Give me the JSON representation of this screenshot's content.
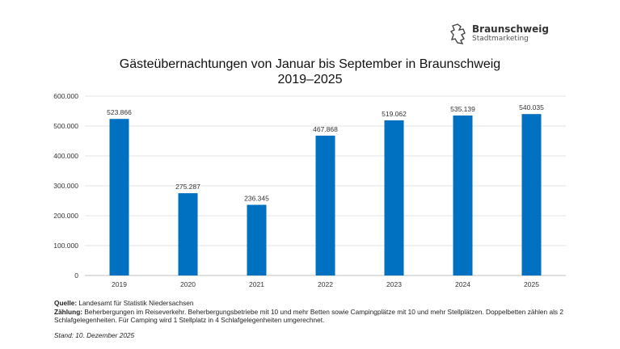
{
  "logo": {
    "name": "Braunschweig",
    "sub": "Stadtmarketing"
  },
  "chart_data": {
    "type": "bar",
    "title": "Gästeübernachtungen von Januar bis September in Braunschweig",
    "subtitle": "2019–2025",
    "categories": [
      "2019",
      "2020",
      "2021",
      "2022",
      "2023",
      "2024",
      "2025"
    ],
    "values": [
      523866,
      275287,
      236345,
      467868,
      519062,
      535139,
      540035
    ],
    "data_labels": [
      "523.866",
      "275.287",
      "236.345",
      "467.868",
      "519.062",
      "535.139",
      "540.035"
    ],
    "ylim": [
      0,
      600000
    ],
    "yticks": [
      0,
      100000,
      200000,
      300000,
      400000,
      500000,
      600000
    ],
    "ytick_labels": [
      "0",
      "100.000",
      "200.000",
      "300.000",
      "400.000",
      "500.000",
      "600.000"
    ],
    "grid": true,
    "bar_color": "#0070c0"
  },
  "footer": {
    "source_label": "Quelle:",
    "source_text": " Landesamt für Statistik Niedersachsen",
    "count_label": "Zählung:",
    "count_text": " Beherbergungen im Reiseverkehr. Beherbergungsbetriebe mit 10 und mehr Betten sowie Campingplätze mit 10 und mehr Stellplätzen. Doppelbetten zählen als 2 Schlafgelegenheiten. Für Camping wird 1 Stellplatz in 4 Schlafgelegenheiten umgerechnet.",
    "stand": "Stand: 10. Dezember 2025"
  }
}
